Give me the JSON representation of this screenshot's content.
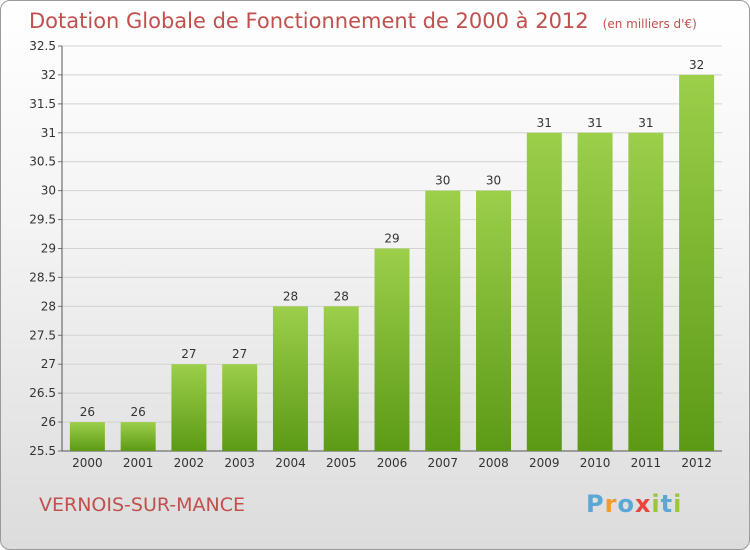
{
  "title": "Dotation Globale de Fonctionnement de 2000 à 2012",
  "subtitle": "(en milliers d'€)",
  "commune": "VERNOIS-SUR-MANCE",
  "logo": {
    "letters": [
      "P",
      "r",
      "o",
      "x",
      "i",
      "t",
      "i"
    ],
    "colors": [
      "#5ba7d6",
      "#f19a2e",
      "#5ba7d6",
      "#e8463e",
      "#9bc53d",
      "#5ba7d6",
      "#9bc53d"
    ]
  },
  "colors": {
    "title": "#c0504d",
    "bar_top": "#9ccf4a",
    "bar_bottom": "#5c9a16"
  },
  "chart_data": {
    "type": "bar",
    "categories": [
      "2000",
      "2001",
      "2002",
      "2003",
      "2004",
      "2005",
      "2006",
      "2007",
      "2008",
      "2009",
      "2010",
      "2011",
      "2012"
    ],
    "values": [
      26,
      26,
      27,
      27,
      28,
      28,
      29,
      30,
      30,
      31,
      31,
      31,
      32
    ],
    "ylim": [
      25.5,
      32.5
    ],
    "yticks": [
      25.5,
      26,
      26.5,
      27,
      27.5,
      28,
      28.5,
      29,
      29.5,
      30,
      30.5,
      31,
      31.5,
      32,
      32.5
    ],
    "ytick_labels": [
      "25.5",
      "26",
      "26.5",
      "27",
      "27.5",
      "28",
      "28.5",
      "29",
      "29.5",
      "30",
      "30.5",
      "31",
      "31.5",
      "32",
      "32.5"
    ],
    "grid": true
  }
}
